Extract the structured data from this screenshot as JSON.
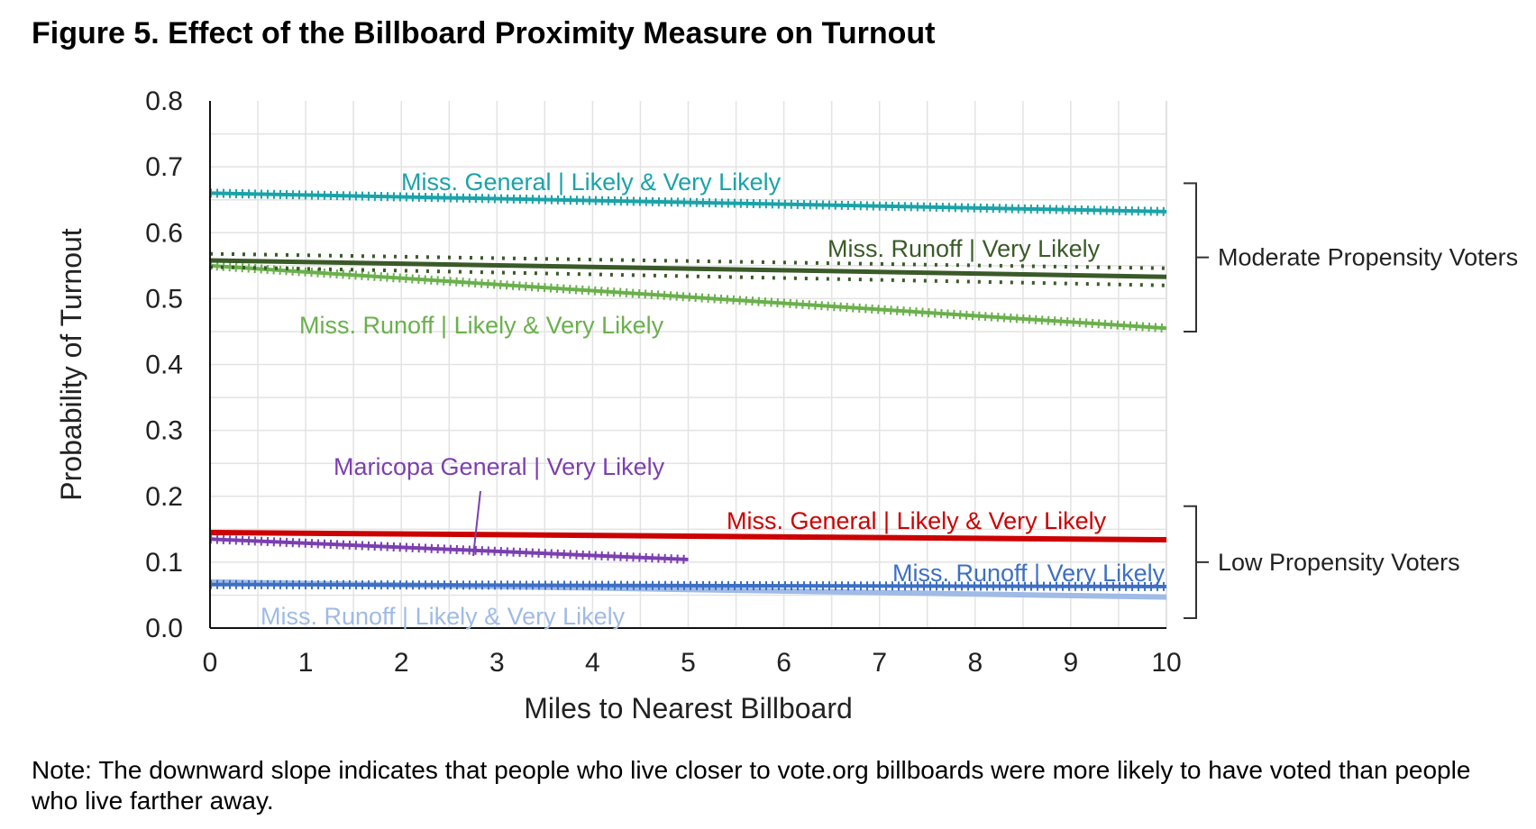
{
  "title": "Figure 5. Effect of the Billboard Proximity Measure on Turnout",
  "note": "Note: The downward slope indicates that people who live closer to vote.org billboards were more likely to have voted than people who live farther away.",
  "chart_data": {
    "type": "line",
    "title": "Figure 5. Effect of the Billboard Proximity Measure on Turnout",
    "xlabel": "Miles to Nearest Billboard",
    "ylabel": "Probability of Turnout",
    "xlim": [
      0,
      10
    ],
    "ylim": [
      0,
      0.8
    ],
    "grid": true,
    "x_ticks": [
      "0",
      "1",
      "2",
      "3",
      "4",
      "5",
      "6",
      "7",
      "8",
      "9",
      "10"
    ],
    "y_ticks": [
      "0.0",
      "0.1",
      "0.2",
      "0.3",
      "0.4",
      "0.5",
      "0.6",
      "0.7",
      "0.8"
    ],
    "series": [
      {
        "name": "Miss. General  | Likely & Very Likely",
        "color": "#1aa3a8",
        "style": "dotted-solid",
        "x": [
          0,
          10
        ],
        "y": [
          0.66,
          0.632
        ]
      },
      {
        "name": "Miss. Runoff | Very Likely",
        "color": "#3a5a28",
        "style": "solid-with-ci",
        "x": [
          0,
          10
        ],
        "y": [
          0.558,
          0.533
        ],
        "ci_upper": [
          0.568,
          0.546
        ],
        "ci_lower": [
          0.548,
          0.52
        ]
      },
      {
        "name": "Miss. Runoff | Likely & Very Likely",
        "color": "#6ab04c",
        "style": "dotted-solid",
        "x": [
          0,
          10
        ],
        "y": [
          0.55,
          0.455
        ]
      },
      {
        "name": "Maricopa General | Very Likely",
        "color": "#7b3fb0",
        "style": "dotted-solid",
        "x": [
          0,
          5
        ],
        "y": [
          0.135,
          0.104
        ]
      },
      {
        "name": "Miss. General | Likely & Very Likely",
        "color": "#cc0000",
        "style": "solid",
        "x": [
          0,
          10
        ],
        "y": [
          0.145,
          0.134
        ]
      },
      {
        "name": "Miss. Runoff | Very Likely",
        "color": "#3d6fc4",
        "style": "dotted-solid",
        "x": [
          0,
          10
        ],
        "y": [
          0.066,
          0.063
        ]
      },
      {
        "name": "Miss. Runoff | Likely & Very Likely",
        "color": "#9fbbe6",
        "style": "solid",
        "x": [
          0,
          10
        ],
        "y": [
          0.07,
          0.047
        ]
      }
    ],
    "groups": [
      {
        "label": "Moderate Propensity Voters",
        "range": [
          0.45,
          0.675
        ]
      },
      {
        "label": "Low Propensity Voters",
        "range": [
          0.015,
          0.185
        ]
      }
    ]
  }
}
